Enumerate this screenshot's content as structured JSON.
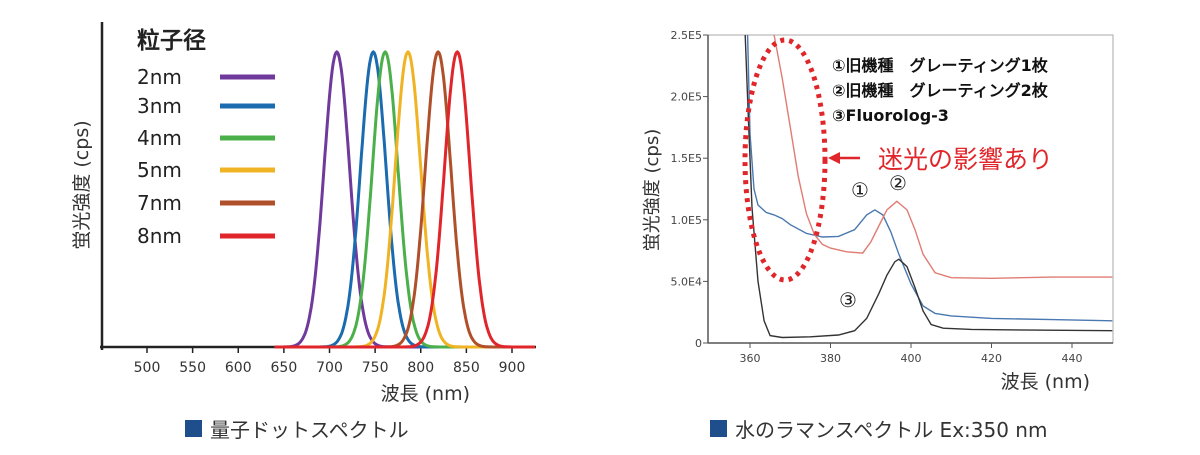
{
  "chart_data": [
    {
      "type": "line",
      "ylabel": "蛍光強度 (cps)",
      "xlabel": "波長 (nm)",
      "xlim": [
        450,
        925
      ],
      "ylim": [
        0,
        1
      ],
      "xticks": [
        500,
        550,
        600,
        650,
        700,
        750,
        800,
        850,
        900
      ],
      "legend_title": "粒子径",
      "legend_position": "top-left",
      "series": [
        {
          "name": "2nm",
          "peak": 708,
          "color": "#6f3a9b"
        },
        {
          "name": "3nm",
          "peak": 748,
          "color": "#1b6bb0"
        },
        {
          "name": "4nm",
          "peak": 761,
          "color": "#4bb04a"
        },
        {
          "name": "5nm",
          "peak": 786,
          "color": "#f0b323"
        },
        {
          "name": "7nm",
          "peak": 819,
          "color": "#b0502a"
        },
        {
          "name": "8nm",
          "peak": 840,
          "color": "#e0262a"
        }
      ],
      "fwhm_nm": 33,
      "caption": "量子ドットスペクトル"
    },
    {
      "type": "line",
      "ylabel": "蛍光強度 (cps)",
      "xlabel": "波長 (nm)",
      "xlim": [
        350,
        450
      ],
      "ylim": [
        0,
        250000
      ],
      "xticks": [
        360,
        380,
        400,
        420,
        440
      ],
      "yticks": [
        {
          "v": 0,
          "label": "0"
        },
        {
          "v": 50000,
          "label": "5.0E4"
        },
        {
          "v": 100000,
          "label": "1.0E5"
        },
        {
          "v": 150000,
          "label": "1.5E5"
        },
        {
          "v": 200000,
          "label": "2.0E5"
        },
        {
          "v": 250000,
          "label": "2.5E5"
        }
      ],
      "legend": [
        "①旧機種　グレーティング1枚",
        "②旧機種　グレーティング2枚",
        "③Fluorolog-3"
      ],
      "annotation": "迷光の影響あり",
      "curve_labels": [
        "①",
        "②",
        "③"
      ],
      "series": [
        {
          "name": "①",
          "color": "#4a78b0",
          "x": [
            359.4,
            360,
            361,
            362,
            364,
            366,
            368,
            370,
            374,
            378,
            382,
            386,
            389,
            391,
            393,
            395,
            397,
            400,
            403,
            406,
            410,
            420,
            435,
            450
          ],
          "y": [
            250000,
            170000,
            125000,
            112000,
            106000,
            104000,
            101000,
            96000,
            89000,
            86000,
            86500,
            92000,
            104000,
            108000,
            104000,
            90000,
            72000,
            48000,
            30000,
            24000,
            22000,
            20000,
            19000,
            18000
          ]
        },
        {
          "name": "②",
          "color": "#e07c73",
          "x": [
            366,
            368,
            370,
            372,
            374,
            376,
            378,
            380,
            384,
            388,
            390,
            392,
            394,
            396.5,
            399,
            401,
            403,
            406,
            410,
            420,
            435,
            450
          ],
          "y": [
            250000,
            215000,
            175000,
            135000,
            105000,
            88000,
            80000,
            77000,
            74000,
            73000,
            82000,
            95000,
            108000,
            115000,
            108000,
            92000,
            72000,
            57000,
            53000,
            52500,
            53500,
            53500
          ]
        },
        {
          "name": "③",
          "color": "#333333",
          "x": [
            358.8,
            359.5,
            360.5,
            362,
            363.5,
            365,
            368,
            375,
            382,
            386,
            389,
            392,
            394,
            396,
            397,
            399,
            401,
            403,
            405,
            408,
            415,
            430,
            450
          ],
          "y": [
            250000,
            190000,
            110000,
            50000,
            18000,
            6000,
            4500,
            5000,
            6500,
            10000,
            20000,
            40000,
            55000,
            66000,
            68000,
            62000,
            45000,
            26000,
            15000,
            12000,
            11000,
            10500,
            10000
          ]
        }
      ],
      "caption": "水のラマンスペクトル Ex:350 nm"
    }
  ]
}
